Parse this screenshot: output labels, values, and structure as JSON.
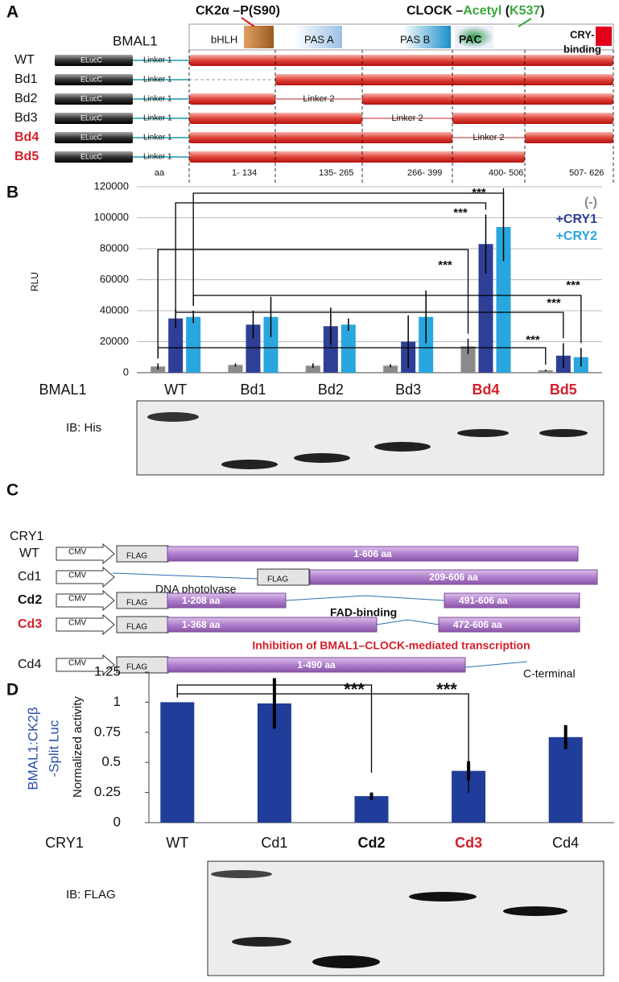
{
  "panel_a": {
    "label": "A",
    "protein": "BMAL1",
    "ck2": "CK2α –P(S90)",
    "clock": [
      "CLOCK –",
      "Acetyl",
      " (",
      "K537",
      ")"
    ],
    "domains": [
      "bHLH",
      "PAS A",
      "PAS B",
      "PAC"
    ],
    "cry_binding": [
      "CRY-",
      "binding"
    ],
    "rows": [
      {
        "name": "WT",
        "tag": "ELucC",
        "linker": "Linker 1"
      },
      {
        "name": "Bd1",
        "tag": "ELucC",
        "linker": "Linker 1"
      },
      {
        "name": "Bd2",
        "tag": "ELucC",
        "linker": "Linker 1",
        "linker2": "Linker 2"
      },
      {
        "name": "Bd3",
        "tag": "ELucC",
        "linker": "Linker 1",
        "linker2": "Linker 2"
      },
      {
        "name": "Bd4",
        "tag": "ELucC",
        "linker": "Linker 1",
        "linker2": "Linker 2"
      },
      {
        "name": "Bd5",
        "tag": "ELucC",
        "linker": "Linker 1"
      }
    ],
    "aa": [
      "aa",
      "1- 134",
      "135- 265",
      "266- 399",
      "400- 506",
      "507- 626"
    ]
  },
  "chart_data": [
    {
      "type": "bar",
      "panel": "B",
      "y_label": "RLU",
      "x_label": "BMAL1",
      "blot_label": "IB: His",
      "categories": [
        "WT",
        "Bd1",
        "Bd2",
        "Bd3",
        "Bd4",
        "Bd5"
      ],
      "series": [
        {
          "name": "(-)",
          "color": "#8a8a8a",
          "values": [
            4000,
            5000,
            4500,
            4500,
            17000,
            1500
          ],
          "errors": [
            2000,
            1000,
            1500,
            1000,
            5000,
            500
          ]
        },
        {
          "name": "+CRY1",
          "color": "#2e3f95",
          "values": [
            35000,
            31000,
            30000,
            20000,
            83000,
            11000
          ],
          "errors": [
            6000,
            9000,
            12000,
            17000,
            19000,
            8000
          ]
        },
        {
          "name": "+CRY2",
          "color": "#29a6dd",
          "values": [
            36000,
            36000,
            31000,
            36000,
            94000,
            10000
          ],
          "errors": [
            4000,
            13000,
            4000,
            17000,
            22000,
            6000
          ]
        }
      ],
      "ylim": [
        0,
        120000
      ],
      "yticks": [
        0,
        20000,
        40000,
        60000,
        80000,
        100000,
        120000
      ],
      "grid": true,
      "annotations": [
        "***",
        "***",
        "***",
        "***",
        "***",
        "***"
      ]
    },
    {
      "type": "bar",
      "panel": "D",
      "y_label": "Normalized activity",
      "side_label": [
        "BMAL1:CK2β",
        "-Split Luc"
      ],
      "x_label": "CRY1",
      "blot_label": "IB: FLAG",
      "categories": [
        "WT",
        "Cd1",
        "Cd2",
        "Cd3",
        "Cd4"
      ],
      "values": [
        1,
        0.99,
        0.22,
        0.43,
        0.71
      ],
      "errors": [
        0,
        0.21,
        0.03,
        0.08,
        0.1
      ],
      "color": "#1f3d99",
      "ylim": [
        0,
        1.25
      ],
      "yticks": [
        0,
        0.25,
        0.5,
        0.75,
        1,
        1.25
      ],
      "grid": false,
      "annotations": [
        "***",
        "***"
      ]
    }
  ],
  "panel_c": {
    "label": "C",
    "protein": "CRY1",
    "rows": [
      {
        "name": "WT",
        "promoter": "CMV",
        "tag": "FLAG",
        "segments": [
          "1-606 aa"
        ]
      },
      {
        "name": "Cd1",
        "promoter": "CMV",
        "tag": "FLAG",
        "segments": [
          "209-606 aa"
        ]
      },
      {
        "name": "Cd2",
        "promoter": "CMV",
        "tag": "FLAG",
        "segments": [
          "1-208 aa",
          "491-606 aa"
        ]
      },
      {
        "name": "Cd3",
        "promoter": "CMV",
        "tag": "FLAG",
        "segments": [
          "1-368 aa",
          "472-606 aa"
        ]
      },
      {
        "name": "Cd4",
        "promoter": "CMV",
        "tag": "FLAG",
        "segments": [
          "1-490 aa"
        ]
      }
    ],
    "notes": [
      "DNA photolyase",
      "FAD-binding",
      "Inhibition of BMAL1–CLOCK-mediated transcription",
      "C-terminal"
    ]
  }
}
